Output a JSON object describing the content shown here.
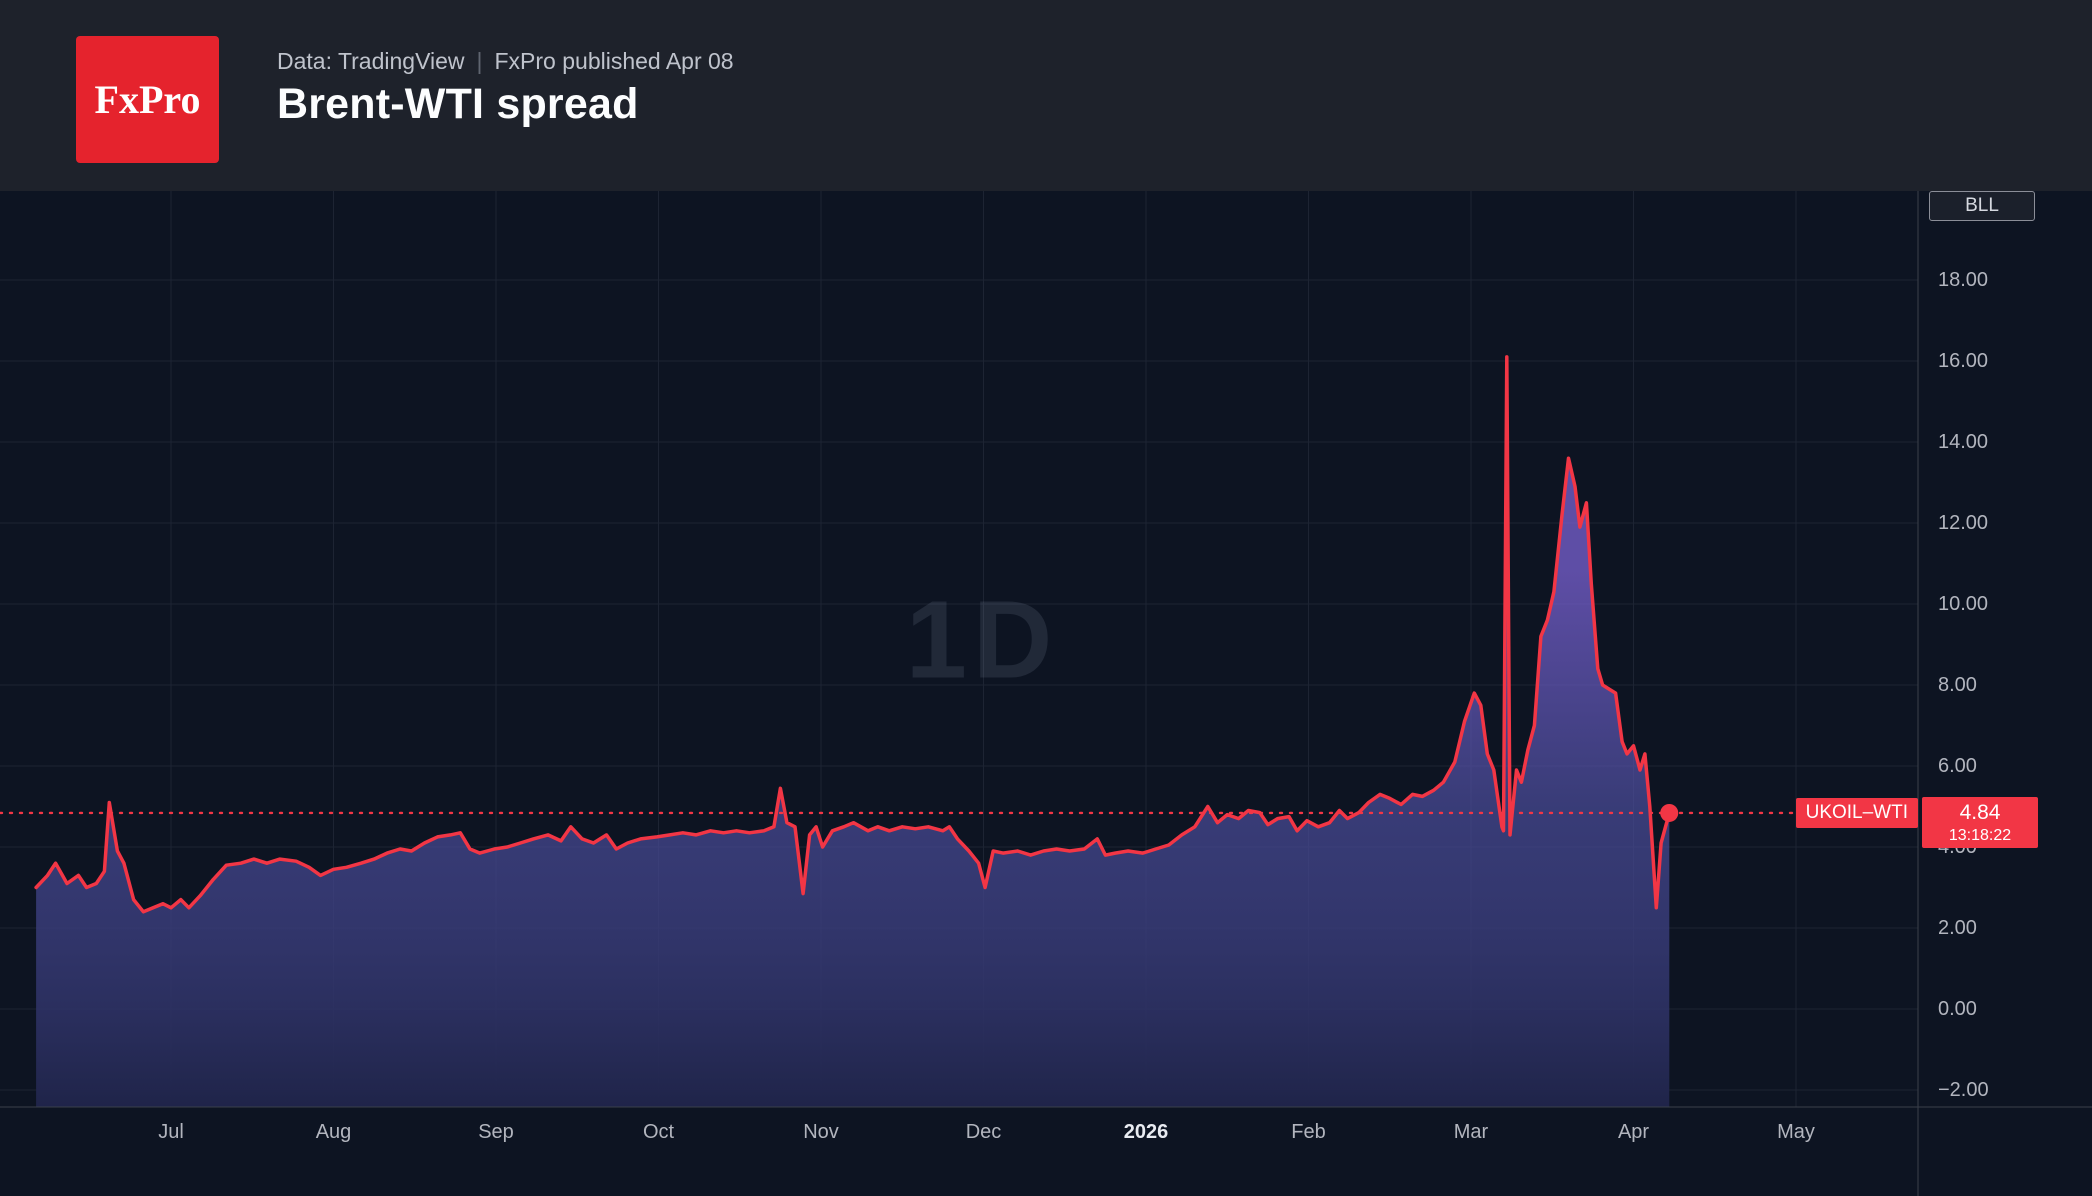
{
  "header": {
    "logo_text": "FxPro",
    "source": "Data: TradingView",
    "separator": "|",
    "published": "FxPro published Apr 08",
    "title": "Brent-WTI spread"
  },
  "chart": {
    "watermark": "1D",
    "axis_unit": "BLL",
    "price_label": {
      "symbol": "UKOIL–WTI",
      "value": "4.84",
      "time": "13:18:22"
    },
    "colors": {
      "line": "#f23645",
      "badge_bg": "#f23645",
      "grid": "#1d2433",
      "separator": "#3a3f4a",
      "fill_top": "#7e64d9",
      "fill_mid": "#4c4e9e",
      "fill_bottom": "#1f2449",
      "background": "#0d1422",
      "header_bg": "#1e222b",
      "axis_text": "#b2b5be",
      "logo_bg": "#e5232d"
    }
  },
  "chart_data": {
    "type": "area",
    "title": "Brent-WTI spread",
    "x_unit": "months, offset 0 = Jul tick, 1 unit = 1 month",
    "x_ticks": [
      {
        "label": "Jul",
        "bold": false
      },
      {
        "label": "Aug",
        "bold": false
      },
      {
        "label": "Sep",
        "bold": false
      },
      {
        "label": "Oct",
        "bold": false
      },
      {
        "label": "Nov",
        "bold": false
      },
      {
        "label": "Dec",
        "bold": false
      },
      {
        "label": "2026",
        "bold": true
      },
      {
        "label": "Feb",
        "bold": false
      },
      {
        "label": "Mar",
        "bold": false
      },
      {
        "label": "Apr",
        "bold": false
      },
      {
        "label": "May",
        "bold": false
      }
    ],
    "y_ticks": [
      18,
      16,
      14,
      12,
      10,
      8,
      6,
      4,
      2,
      0,
      -2
    ],
    "y_tick_labels": [
      "18.00",
      "16.00",
      "14.00",
      "12.00",
      "10.00",
      "8.00",
      "6.00",
      "4.00",
      "2.00",
      "0.00",
      "−2.00"
    ],
    "ylim": [
      -2.4,
      20.2
    ],
    "grid": true,
    "legend_position": "none",
    "current_value": 4.84,
    "series": [
      {
        "name": "UKOIL–WTI",
        "points": [
          [
            -0.83,
            3.0
          ],
          [
            -0.76,
            3.3
          ],
          [
            -0.71,
            3.6
          ],
          [
            -0.64,
            3.1
          ],
          [
            -0.57,
            3.3
          ],
          [
            -0.52,
            3.0
          ],
          [
            -0.46,
            3.1
          ],
          [
            -0.41,
            3.4
          ],
          [
            -0.38,
            5.1
          ],
          [
            -0.33,
            3.9
          ],
          [
            -0.29,
            3.6
          ],
          [
            -0.23,
            2.7
          ],
          [
            -0.17,
            2.4
          ],
          [
            -0.11,
            2.5
          ],
          [
            -0.05,
            2.6
          ],
          [
            0.0,
            2.5
          ],
          [
            0.06,
            2.7
          ],
          [
            0.11,
            2.5
          ],
          [
            0.18,
            2.8
          ],
          [
            0.26,
            3.2
          ],
          [
            0.34,
            3.55
          ],
          [
            0.43,
            3.6
          ],
          [
            0.51,
            3.7
          ],
          [
            0.59,
            3.6
          ],
          [
            0.67,
            3.7
          ],
          [
            0.77,
            3.65
          ],
          [
            0.85,
            3.5
          ],
          [
            0.92,
            3.3
          ],
          [
            1.0,
            3.45
          ],
          [
            1.08,
            3.5
          ],
          [
            1.17,
            3.6
          ],
          [
            1.25,
            3.7
          ],
          [
            1.33,
            3.85
          ],
          [
            1.41,
            3.95
          ],
          [
            1.48,
            3.9
          ],
          [
            1.56,
            4.1
          ],
          [
            1.64,
            4.25
          ],
          [
            1.72,
            4.3
          ],
          [
            1.78,
            4.35
          ],
          [
            1.84,
            3.95
          ],
          [
            1.9,
            3.85
          ],
          [
            1.99,
            3.95
          ],
          [
            2.07,
            4.0
          ],
          [
            2.15,
            4.1
          ],
          [
            2.23,
            4.2
          ],
          [
            2.32,
            4.3
          ],
          [
            2.4,
            4.15
          ],
          [
            2.46,
            4.5
          ],
          [
            2.53,
            4.2
          ],
          [
            2.6,
            4.1
          ],
          [
            2.68,
            4.3
          ],
          [
            2.74,
            3.95
          ],
          [
            2.81,
            4.1
          ],
          [
            2.89,
            4.2
          ],
          [
            2.99,
            4.25
          ],
          [
            3.07,
            4.3
          ],
          [
            3.15,
            4.35
          ],
          [
            3.23,
            4.3
          ],
          [
            3.32,
            4.4
          ],
          [
            3.4,
            4.35
          ],
          [
            3.48,
            4.4
          ],
          [
            3.56,
            4.35
          ],
          [
            3.65,
            4.4
          ],
          [
            3.71,
            4.5
          ],
          [
            3.75,
            5.45
          ],
          [
            3.79,
            4.6
          ],
          [
            3.84,
            4.5
          ],
          [
            3.89,
            2.85
          ],
          [
            3.93,
            4.3
          ],
          [
            3.97,
            4.5
          ],
          [
            4.01,
            4.0
          ],
          [
            4.07,
            4.4
          ],
          [
            4.14,
            4.5
          ],
          [
            4.2,
            4.6
          ],
          [
            4.29,
            4.4
          ],
          [
            4.35,
            4.5
          ],
          [
            4.42,
            4.4
          ],
          [
            4.5,
            4.5
          ],
          [
            4.58,
            4.45
          ],
          [
            4.66,
            4.5
          ],
          [
            4.75,
            4.4
          ],
          [
            4.79,
            4.5
          ],
          [
            4.84,
            4.2
          ],
          [
            4.91,
            3.9
          ],
          [
            4.97,
            3.6
          ],
          [
            5.01,
            3.0
          ],
          [
            5.06,
            3.9
          ],
          [
            5.12,
            3.85
          ],
          [
            5.21,
            3.9
          ],
          [
            5.29,
            3.8
          ],
          [
            5.37,
            3.9
          ],
          [
            5.45,
            3.95
          ],
          [
            5.53,
            3.9
          ],
          [
            5.62,
            3.95
          ],
          [
            5.7,
            4.2
          ],
          [
            5.75,
            3.8
          ],
          [
            5.81,
            3.85
          ],
          [
            5.89,
            3.9
          ],
          [
            5.98,
            3.85
          ],
          [
            6.06,
            3.95
          ],
          [
            6.14,
            4.05
          ],
          [
            6.22,
            4.3
          ],
          [
            6.3,
            4.5
          ],
          [
            6.38,
            5.0
          ],
          [
            6.44,
            4.6
          ],
          [
            6.5,
            4.8
          ],
          [
            6.57,
            4.7
          ],
          [
            6.63,
            4.9
          ],
          [
            6.7,
            4.85
          ],
          [
            6.75,
            4.55
          ],
          [
            6.81,
            4.7
          ],
          [
            6.88,
            4.75
          ],
          [
            6.93,
            4.4
          ],
          [
            6.99,
            4.65
          ],
          [
            7.06,
            4.5
          ],
          [
            7.13,
            4.6
          ],
          [
            7.19,
            4.9
          ],
          [
            7.24,
            4.7
          ],
          [
            7.31,
            4.85
          ],
          [
            7.37,
            5.1
          ],
          [
            7.44,
            5.3
          ],
          [
            7.5,
            5.2
          ],
          [
            7.57,
            5.05
          ],
          [
            7.64,
            5.3
          ],
          [
            7.7,
            5.25
          ],
          [
            7.77,
            5.4
          ],
          [
            7.83,
            5.6
          ],
          [
            7.9,
            6.1
          ],
          [
            7.96,
            7.1
          ],
          [
            8.02,
            7.8
          ],
          [
            8.06,
            7.5
          ],
          [
            8.1,
            6.3
          ],
          [
            8.14,
            5.9
          ],
          [
            8.19,
            4.5
          ],
          [
            8.2,
            4.4
          ],
          [
            8.22,
            16.1
          ],
          [
            8.24,
            4.3
          ],
          [
            8.28,
            5.9
          ],
          [
            8.31,
            5.6
          ],
          [
            8.35,
            6.4
          ],
          [
            8.39,
            7.0
          ],
          [
            8.43,
            9.2
          ],
          [
            8.47,
            9.6
          ],
          [
            8.51,
            10.3
          ],
          [
            8.56,
            12.2
          ],
          [
            8.6,
            13.6
          ],
          [
            8.64,
            12.9
          ],
          [
            8.67,
            11.9
          ],
          [
            8.71,
            12.5
          ],
          [
            8.74,
            10.5
          ],
          [
            8.78,
            8.4
          ],
          [
            8.81,
            8.0
          ],
          [
            8.85,
            7.9
          ],
          [
            8.89,
            7.8
          ],
          [
            8.93,
            6.6
          ],
          [
            8.96,
            6.3
          ],
          [
            9.0,
            6.5
          ],
          [
            9.04,
            5.9
          ],
          [
            9.07,
            6.3
          ],
          [
            9.1,
            5.0
          ],
          [
            9.14,
            2.5
          ],
          [
            9.17,
            4.1
          ],
          [
            9.22,
            4.84
          ]
        ]
      }
    ]
  }
}
